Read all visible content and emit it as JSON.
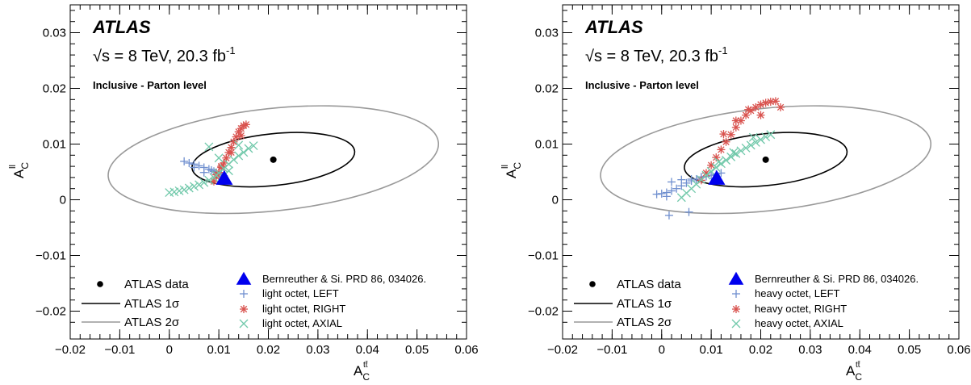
{
  "chart_data": [
    {
      "type": "scatter",
      "experiment_label": "ATLAS",
      "energy_label": {
        "sqrt": "√s",
        "rest": " = 8 TeV,  20.3 fb",
        "sup": "-1"
      },
      "subtitle": "Inclusive - Parton level",
      "xlabel": {
        "main": "A",
        "sub": "C",
        "sup": "tt̄"
      },
      "ylabel": {
        "main": "A",
        "sub": "C",
        "sup": "ll"
      },
      "xlim": [
        -0.02,
        0.06
      ],
      "ylim": [
        -0.025,
        0.035
      ],
      "xticks": [
        "−0.02",
        "−0.01",
        "0",
        "0.01",
        "0.02",
        "0.03",
        "0.04",
        "0.05",
        "0.06"
      ],
      "xtick_values": [
        -0.02,
        -0.01,
        0,
        0.01,
        0.02,
        0.03,
        0.04,
        0.05,
        0.06
      ],
      "yticks": [
        "−0.02",
        "−0.01",
        "0",
        "0.01",
        "0.02",
        "0.03"
      ],
      "ytick_values": [
        -0.02,
        -0.01,
        0,
        0.01,
        0.02,
        0.03
      ],
      "data_point": {
        "x": 0.021,
        "y": 0.0072
      },
      "sm_prediction": {
        "x": 0.0111,
        "y": 0.0038
      },
      "ellipse_1sigma": {
        "cx": 0.021,
        "cy": 0.0072,
        "rx": 0.0165,
        "ry": 0.00465,
        "angle": 6
      },
      "ellipse_2sigma": {
        "cx": 0.021,
        "cy": 0.0072,
        "rx": 0.0335,
        "ry": 0.0092,
        "angle": 6
      },
      "legend": {
        "data": "ATLAS data",
        "one_sigma": "ATLAS 1σ",
        "two_sigma": "ATLAS 2σ",
        "prediction": "Bernreuther & Si. PRD 86, 034026.",
        "left": "light octet, LEFT",
        "right": "light octet, RIGHT",
        "axial": "light octet, AXIAL"
      },
      "series": [
        {
          "name": "light octet, LEFT",
          "marker": "plus",
          "color": "#6f8fcf",
          "x": [
            0.003,
            0.004,
            0.005,
            0.006,
            0.007,
            0.008,
            0.0085,
            0.009,
            0.0095,
            0.01,
            0.0105,
            0.011,
            0.005,
            0.007
          ],
          "y": [
            0.0069,
            0.0066,
            0.0064,
            0.0061,
            0.0058,
            0.0055,
            0.0053,
            0.0051,
            0.0049,
            0.0047,
            0.0045,
            0.0043,
            0.0058,
            0.0049
          ]
        },
        {
          "name": "light octet, RIGHT",
          "marker": "star",
          "color": "#d9534f",
          "x": [
            0.009,
            0.0095,
            0.01,
            0.0105,
            0.011,
            0.0115,
            0.012,
            0.0125,
            0.013,
            0.0135,
            0.014,
            0.0145,
            0.015,
            0.0155,
            0.0145,
            0.0125,
            0.0105,
            0.0095
          ],
          "y": [
            0.0033,
            0.0041,
            0.0049,
            0.0058,
            0.0066,
            0.0075,
            0.0085,
            0.0094,
            0.0104,
            0.0113,
            0.0122,
            0.0128,
            0.0133,
            0.0135,
            0.0115,
            0.0085,
            0.006,
            0.0045
          ]
        },
        {
          "name": "light octet, AXIAL",
          "marker": "x",
          "color": "#72c9ab",
          "x": [
            0.0,
            0.001,
            0.002,
            0.003,
            0.004,
            0.005,
            0.006,
            0.007,
            0.008,
            0.009,
            0.0095,
            0.01,
            0.011,
            0.012,
            0.013,
            0.014,
            0.015,
            0.016,
            0.017,
            0.008,
            0.01,
            0.012,
            0.014
          ],
          "y": [
            0.0013,
            0.0014,
            0.0016,
            0.0018,
            0.0021,
            0.0024,
            0.0027,
            0.0031,
            0.0035,
            0.004,
            0.0044,
            0.0048,
            0.0056,
            0.0064,
            0.0072,
            0.0079,
            0.0085,
            0.0092,
            0.0097,
            0.0095,
            0.0075,
            0.0052,
            0.0098
          ]
        }
      ]
    },
    {
      "type": "scatter",
      "experiment_label": "ATLAS",
      "energy_label": {
        "sqrt": "√s",
        "rest": " = 8 TeV,  20.3 fb",
        "sup": "-1"
      },
      "subtitle": "Inclusive - Parton level",
      "xlabel": {
        "main": "A",
        "sub": "C",
        "sup": "tt̄"
      },
      "ylabel": {
        "main": "A",
        "sub": "C",
        "sup": "ll"
      },
      "xlim": [
        -0.02,
        0.06
      ],
      "ylim": [
        -0.025,
        0.035
      ],
      "xticks": [
        "−0.02",
        "−0.01",
        "0",
        "0.01",
        "0.02",
        "0.03",
        "0.04",
        "0.05",
        "0.06"
      ],
      "xtick_values": [
        -0.02,
        -0.01,
        0,
        0.01,
        0.02,
        0.03,
        0.04,
        0.05,
        0.06
      ],
      "yticks": [
        "−0.02",
        "−0.01",
        "0",
        "0.01",
        "0.02",
        "0.03"
      ],
      "ytick_values": [
        -0.02,
        -0.01,
        0,
        0.01,
        0.02,
        0.03
      ],
      "data_point": {
        "x": 0.021,
        "y": 0.0072
      },
      "sm_prediction": {
        "x": 0.0111,
        "y": 0.0038
      },
      "ellipse_1sigma": {
        "cx": 0.021,
        "cy": 0.0072,
        "rx": 0.0165,
        "ry": 0.00465,
        "angle": 6
      },
      "ellipse_2sigma": {
        "cx": 0.021,
        "cy": 0.0072,
        "rx": 0.0335,
        "ry": 0.0092,
        "angle": 6
      },
      "legend": {
        "data": "ATLAS data",
        "one_sigma": "ATLAS 1σ",
        "two_sigma": "ATLAS 2σ",
        "prediction": "Bernreuther & Si. PRD 86, 034026.",
        "left": "heavy octet, LEFT",
        "right": "heavy octet, RIGHT",
        "axial": "heavy octet, AXIAL"
      },
      "series": [
        {
          "name": "heavy octet, LEFT",
          "marker": "plus",
          "color": "#6f8fcf",
          "x": [
            -0.001,
            0.0,
            0.001,
            0.002,
            0.003,
            0.004,
            0.005,
            0.006,
            0.007,
            0.008,
            0.009,
            0.01,
            0.011,
            0.012,
            0.002,
            0.004,
            0.006,
            0.008,
            0.001,
            0.0055,
            0.0015
          ],
          "y": [
            0.001,
            0.0011,
            0.0013,
            0.0016,
            0.002,
            0.0025,
            0.003,
            0.0034,
            0.0037,
            0.004,
            0.0042,
            0.0044,
            0.0046,
            0.0048,
            0.0032,
            0.0036,
            0.0037,
            0.0041,
            0.0006,
            -0.0022,
            -0.0028
          ]
        },
        {
          "name": "heavy octet, RIGHT",
          "marker": "star",
          "color": "#d9534f",
          "x": [
            0.008,
            0.009,
            0.01,
            0.011,
            0.012,
            0.013,
            0.014,
            0.015,
            0.016,
            0.017,
            0.018,
            0.019,
            0.02,
            0.021,
            0.022,
            0.023,
            0.024,
            0.0125,
            0.015,
            0.0175,
            0.02
          ],
          "y": [
            0.0035,
            0.0048,
            0.0062,
            0.0076,
            0.009,
            0.0104,
            0.0117,
            0.013,
            0.0142,
            0.0152,
            0.016,
            0.0166,
            0.0171,
            0.0174,
            0.0176,
            0.0177,
            0.0166,
            0.0118,
            0.0142,
            0.0162,
            0.0152
          ]
        },
        {
          "name": "heavy octet, AXIAL",
          "marker": "x",
          "color": "#72c9ab",
          "x": [
            0.004,
            0.005,
            0.006,
            0.007,
            0.008,
            0.009,
            0.01,
            0.011,
            0.012,
            0.013,
            0.014,
            0.015,
            0.016,
            0.017,
            0.018,
            0.019,
            0.02,
            0.021,
            0.022,
            0.0115,
            0.0145,
            0.0185
          ],
          "y": [
            0.0004,
            0.0012,
            0.002,
            0.0028,
            0.0036,
            0.0044,
            0.0051,
            0.0058,
            0.0065,
            0.0071,
            0.0077,
            0.0083,
            0.0088,
            0.0093,
            0.0098,
            0.0103,
            0.0108,
            0.0113,
            0.0117,
            0.0068,
            0.0085,
            0.0112
          ]
        }
      ]
    }
  ]
}
